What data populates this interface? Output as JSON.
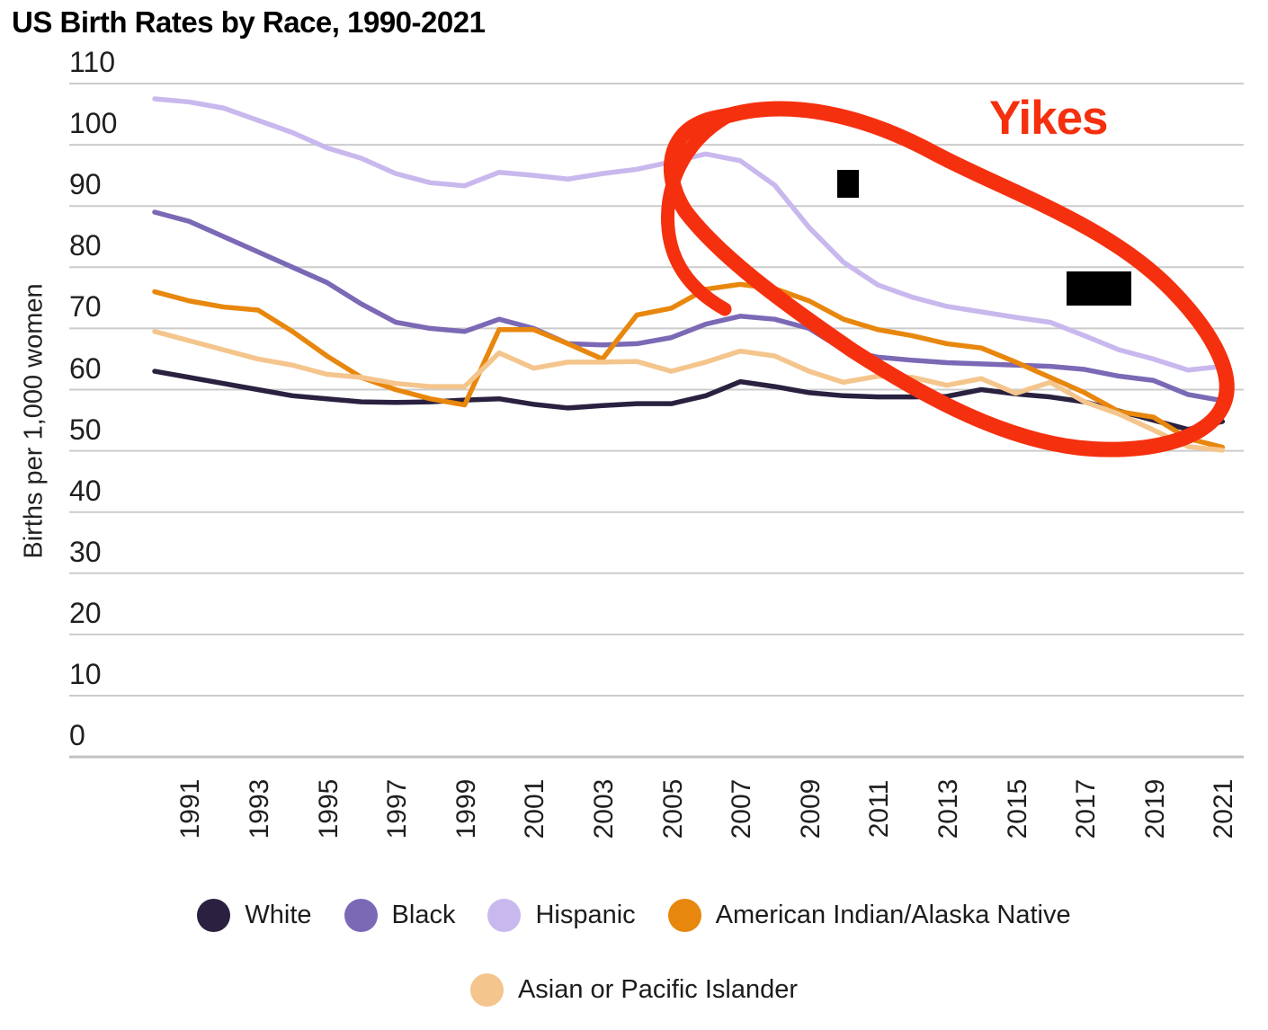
{
  "title": "US Birth Rates by Race, 1990-2021",
  "y_axis": {
    "title": "Births per 1,000 women",
    "ticks": [
      110,
      100,
      90,
      80,
      70,
      60,
      50,
      40,
      30,
      20,
      10,
      0
    ]
  },
  "x_axis": {
    "ticks": [
      1991,
      1993,
      1995,
      1997,
      1999,
      2001,
      2003,
      2005,
      2007,
      2009,
      2011,
      2013,
      2015,
      2017,
      2019,
      2021
    ]
  },
  "annotation": {
    "label": "Yikes",
    "color": "#f5300f"
  },
  "colors": {
    "gridline": "#cccccc",
    "axis_line": "#c2c2c2",
    "tick_text": "#1f1f1f",
    "redaction": "#000000"
  },
  "legend": {
    "rows": [
      [
        0,
        1,
        2,
        3
      ],
      [
        4
      ]
    ]
  },
  "chart_data": {
    "type": "line",
    "title": "US Birth Rates by Race, 1990-2021",
    "xlabel": "",
    "ylabel": "Births per 1,000 women",
    "ylim": [
      0,
      110
    ],
    "grid": true,
    "legend_position": "bottom",
    "x": [
      1990,
      1991,
      1992,
      1993,
      1994,
      1995,
      1996,
      1997,
      1998,
      1999,
      2000,
      2001,
      2002,
      2003,
      2004,
      2005,
      2006,
      2007,
      2008,
      2009,
      2010,
      2011,
      2012,
      2013,
      2014,
      2015,
      2016,
      2017,
      2018,
      2019,
      2020,
      2021
    ],
    "series": [
      {
        "name": "White",
        "color": "#2a2140",
        "values": [
          63,
          62,
          61,
          60,
          59,
          58.5,
          58,
          57.9,
          58,
          58.3,
          58.5,
          57.6,
          57,
          57.4,
          57.7,
          57.7,
          59,
          61.3,
          60.5,
          59.5,
          59,
          58.8,
          58.8,
          58.9,
          60,
          59.3,
          58.8,
          58,
          56.5,
          55,
          53.5,
          54.8
        ]
      },
      {
        "name": "Black",
        "color": "#7b69b6",
        "values": [
          89,
          87.5,
          85,
          82.5,
          80,
          77.5,
          74,
          71,
          70,
          69.5,
          71.5,
          70,
          67.5,
          67.3,
          67.5,
          68.5,
          70.7,
          72,
          71.5,
          70,
          66.5,
          65.3,
          64.8,
          64.4,
          64.2,
          64,
          63.8,
          63.3,
          62.2,
          61.5,
          59.2,
          58.2
        ]
      },
      {
        "name": "Hispanic",
        "color": "#c9b8ed",
        "values": [
          107.5,
          107,
          106,
          104,
          102,
          99.5,
          97.8,
          95.3,
          93.8,
          93.3,
          95.5,
          95,
          94.4,
          95.3,
          96,
          97.2,
          98.5,
          97.4,
          93.4,
          86.5,
          80.8,
          77.1,
          75.1,
          73.6,
          72.7,
          71.8,
          71,
          68.8,
          66.5,
          65,
          63.2,
          63.8
        ]
      },
      {
        "name": "American Indian/Alaska Native",
        "color": "#e8870d",
        "values": [
          76,
          74.5,
          73.5,
          73,
          69.5,
          65.5,
          62,
          60,
          58.5,
          57.5,
          69.8,
          69.8,
          67.5,
          65,
          72.2,
          73.3,
          76.4,
          77.2,
          76.5,
          74.5,
          71.5,
          69.8,
          68.8,
          67.5,
          66.8,
          64.5,
          62,
          59.5,
          56.4,
          55.5,
          52,
          50.6
        ]
      },
      {
        "name": "Asian or Pacific Islander",
        "color": "#f4c58c",
        "values": [
          69.5,
          68,
          66.5,
          65,
          64,
          62.5,
          62,
          61,
          60.5,
          60.5,
          66,
          63.5,
          64.5,
          64.5,
          64.6,
          63,
          64.5,
          66.3,
          65.5,
          63,
          61.2,
          62.2,
          62,
          60.7,
          61.8,
          59.4,
          61.2,
          58,
          56,
          53.4,
          50.7,
          50.1
        ]
      }
    ]
  }
}
